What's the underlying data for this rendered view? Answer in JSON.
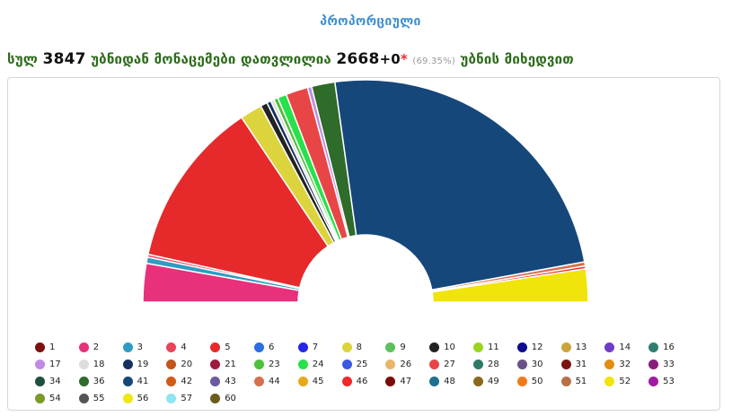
{
  "tab_title": "პროპორციული",
  "summary": {
    "prefix": "სულ",
    "total_districts": "3847",
    "middle": "უბნიდან მონაცემები დათვლილია",
    "counted": "2668",
    "plus": "+",
    "extra": "0",
    "star": "*",
    "percent": "(69.35%)",
    "suffix": "უბნის მიხედვით"
  },
  "chart_data": {
    "type": "pie",
    "variant": "semicircle-donut",
    "unit": "percent_of_semicircle (estimated)",
    "slices": [
      {
        "name": "2",
        "color": "#e8317a",
        "value": 5.6
      },
      {
        "name": "3",
        "color": "#2f9bc3",
        "value": 0.9
      },
      {
        "name": "4",
        "color": "#e8445a",
        "value": 0.4
      },
      {
        "name": "5",
        "color": "#e62a2c",
        "value": 24.3
      },
      {
        "name": "8",
        "color": "#dcd43c",
        "value": 3.2
      },
      {
        "name": "10",
        "color": "#222222",
        "value": 1.0
      },
      {
        "name": "19",
        "color": "#13305e",
        "value": 0.6
      },
      {
        "name": "18",
        "color": "#dddddd",
        "value": 0.5
      },
      {
        "name": "23",
        "color": "#4cc038",
        "value": 0.6
      },
      {
        "name": "24",
        "color": "#27e14a",
        "value": 1.3
      },
      {
        "name": "27",
        "color": "#e84646",
        "value": 3.2
      },
      {
        "name": "17",
        "color": "#c08be3",
        "value": 0.6
      },
      {
        "name": "36",
        "color": "#2f6b2a",
        "value": 3.4
      },
      {
        "name": "41",
        "color": "#16477b",
        "value": 48.6
      },
      {
        "name": "44",
        "color": "#d67050",
        "value": 0.6
      },
      {
        "name": "46",
        "color": "#ee2a2a",
        "value": 0.4
      },
      {
        "name": "52",
        "color": "#f0e40a",
        "value": 4.8
      }
    ]
  },
  "legend": [
    {
      "label": "1",
      "color": "#7a0f12"
    },
    {
      "label": "2",
      "color": "#e8317a"
    },
    {
      "label": "3",
      "color": "#2f9bc3"
    },
    {
      "label": "4",
      "color": "#e8445a"
    },
    {
      "label": "5",
      "color": "#e62a2c"
    },
    {
      "label": "6",
      "color": "#2b6fe0"
    },
    {
      "label": "7",
      "color": "#2626e8"
    },
    {
      "label": "8",
      "color": "#dcd43c"
    },
    {
      "label": "9",
      "color": "#5cc05c"
    },
    {
      "label": "10",
      "color": "#222222"
    },
    {
      "label": "11",
      "color": "#9bd41f"
    },
    {
      "label": "12",
      "color": "#0c0c8c"
    },
    {
      "label": "13",
      "color": "#c9a43a"
    },
    {
      "label": "14",
      "color": "#6f3bc9"
    },
    {
      "label": "16",
      "color": "#2e7f6e"
    },
    {
      "label": "17",
      "color": "#c08be3"
    },
    {
      "label": "18",
      "color": "#dddddd"
    },
    {
      "label": "19",
      "color": "#13305e"
    },
    {
      "label": "20",
      "color": "#c2541c"
    },
    {
      "label": "21",
      "color": "#9e1b3b"
    },
    {
      "label": "23",
      "color": "#4cc038"
    },
    {
      "label": "24",
      "color": "#27e14a"
    },
    {
      "label": "25",
      "color": "#3d58e0"
    },
    {
      "label": "26",
      "color": "#e8b56a"
    },
    {
      "label": "27",
      "color": "#e84646"
    },
    {
      "label": "28",
      "color": "#2b7a67"
    },
    {
      "label": "30",
      "color": "#6a5187"
    },
    {
      "label": "31",
      "color": "#7a1414"
    },
    {
      "label": "32",
      "color": "#e38c12"
    },
    {
      "label": "33",
      "color": "#8a1f7a"
    },
    {
      "label": "34",
      "color": "#1f4f3f"
    },
    {
      "label": "36",
      "color": "#2f6b2a"
    },
    {
      "label": "41",
      "color": "#16477b"
    },
    {
      "label": "42",
      "color": "#d05a16"
    },
    {
      "label": "43",
      "color": "#6c5aa0"
    },
    {
      "label": "44",
      "color": "#d67050"
    },
    {
      "label": "45",
      "color": "#e8a81a"
    },
    {
      "label": "46",
      "color": "#ee2a2a"
    },
    {
      "label": "47",
      "color": "#7a0c0c"
    },
    {
      "label": "48",
      "color": "#1f6f8f"
    },
    {
      "label": "49",
      "color": "#8a6a1a"
    },
    {
      "label": "50",
      "color": "#f07a1a"
    },
    {
      "label": "51",
      "color": "#b8704a"
    },
    {
      "label": "52",
      "color": "#f0e40a"
    },
    {
      "label": "53",
      "color": "#a21aa2"
    },
    {
      "label": "54",
      "color": "#7a9a2a"
    },
    {
      "label": "55",
      "color": "#555555"
    },
    {
      "label": "56",
      "color": "#ede80e"
    },
    {
      "label": "57",
      "color": "#8ee6f0"
    },
    {
      "label": "60",
      "color": "#6b5b1c"
    }
  ]
}
